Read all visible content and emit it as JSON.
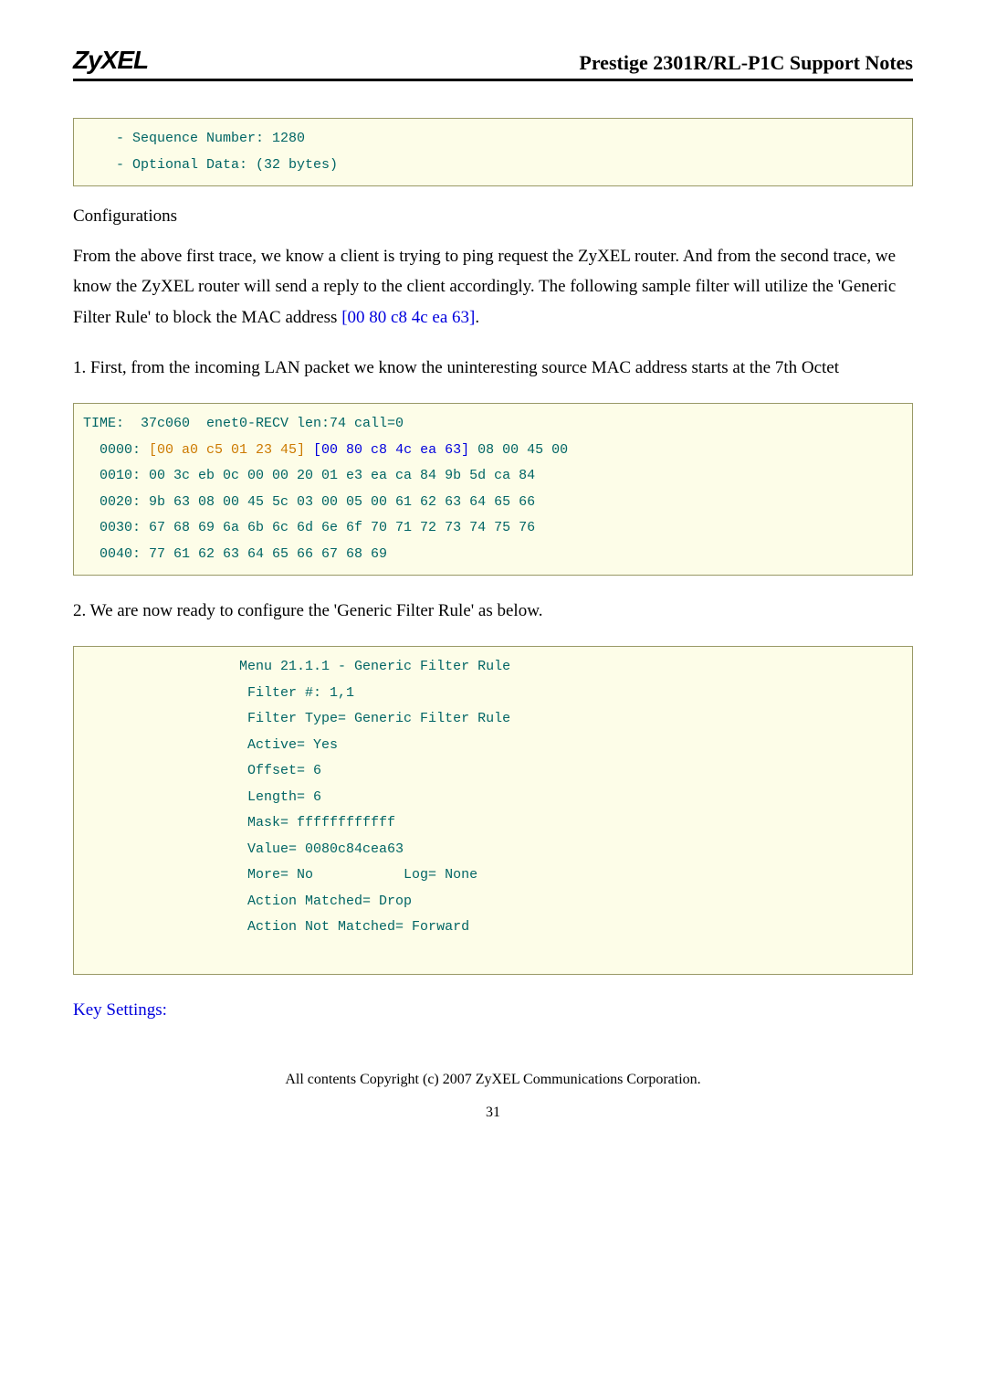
{
  "header": {
    "logo": "ZyXEL",
    "title": "Prestige 2301R/RL-P1C Support Notes"
  },
  "box1": {
    "line1": "    - Sequence Number: 1280",
    "line2": "    - Optional Data: (32 bytes)"
  },
  "sections": {
    "config_heading": "Configurations",
    "para1_a": "From the above first trace, we know a client is trying to ping request the ZyXEL router. And from the second trace, we know the ZyXEL router will send a reply to the client accordingly. The following sample filter will utilize the 'Generic Filter Rule' to block the MAC address ",
    "para1_mac": "[00 80 c8 4c ea 63]",
    "para1_b": ".",
    "para2": "1. First, from the incoming LAN packet we know the uninteresting source MAC address starts at the 7th Octet",
    "para3": "2. We are now ready to configure the 'Generic Filter Rule' as below.",
    "key_settings": "Key Settings:"
  },
  "box2": {
    "l1": "TIME:  37c060  enet0-RECV len:74 call=0",
    "l2a": "  0000: ",
    "l2b": "[00 a0 c5 01 23 45]",
    "l2c": " [00 80 c8 4c ea 63]",
    "l2d": " 08 00 45 00",
    "l3": "  0010: 00 3c eb 0c 00 00 20 01 e3 ea ca 84 9b 5d ca 84",
    "l4": "  0020: 9b 63 08 00 45 5c 03 00 05 00 61 62 63 64 65 66",
    "l5": "  0030: 67 68 69 6a 6b 6c 6d 6e 6f 70 71 72 73 74 75 76",
    "l6": "  0040: 77 61 62 63 64 65 66 67 68 69"
  },
  "box3": {
    "l1": "                   Menu 21.1.1 - Generic Filter Rule",
    "l2": "                    Filter #: 1,1",
    "l3": "                    Filter Type= Generic Filter Rule",
    "l4": "                    Active= Yes",
    "l5": "                    Offset= 6",
    "l6": "                    Length= 6",
    "l7": "                    Mask= ffffffffffff",
    "l8": "                    Value= 0080c84cea63",
    "l9": "                    More= No           Log= None",
    "l10": "                    Action Matched= Drop",
    "l11": "                    Action Not Matched= Forward",
    "l12": "                    "
  },
  "footer": {
    "copyright": "All contents Copyright (c) 2007 ZyXEL Communications Corporation.",
    "pagenum": "31"
  }
}
